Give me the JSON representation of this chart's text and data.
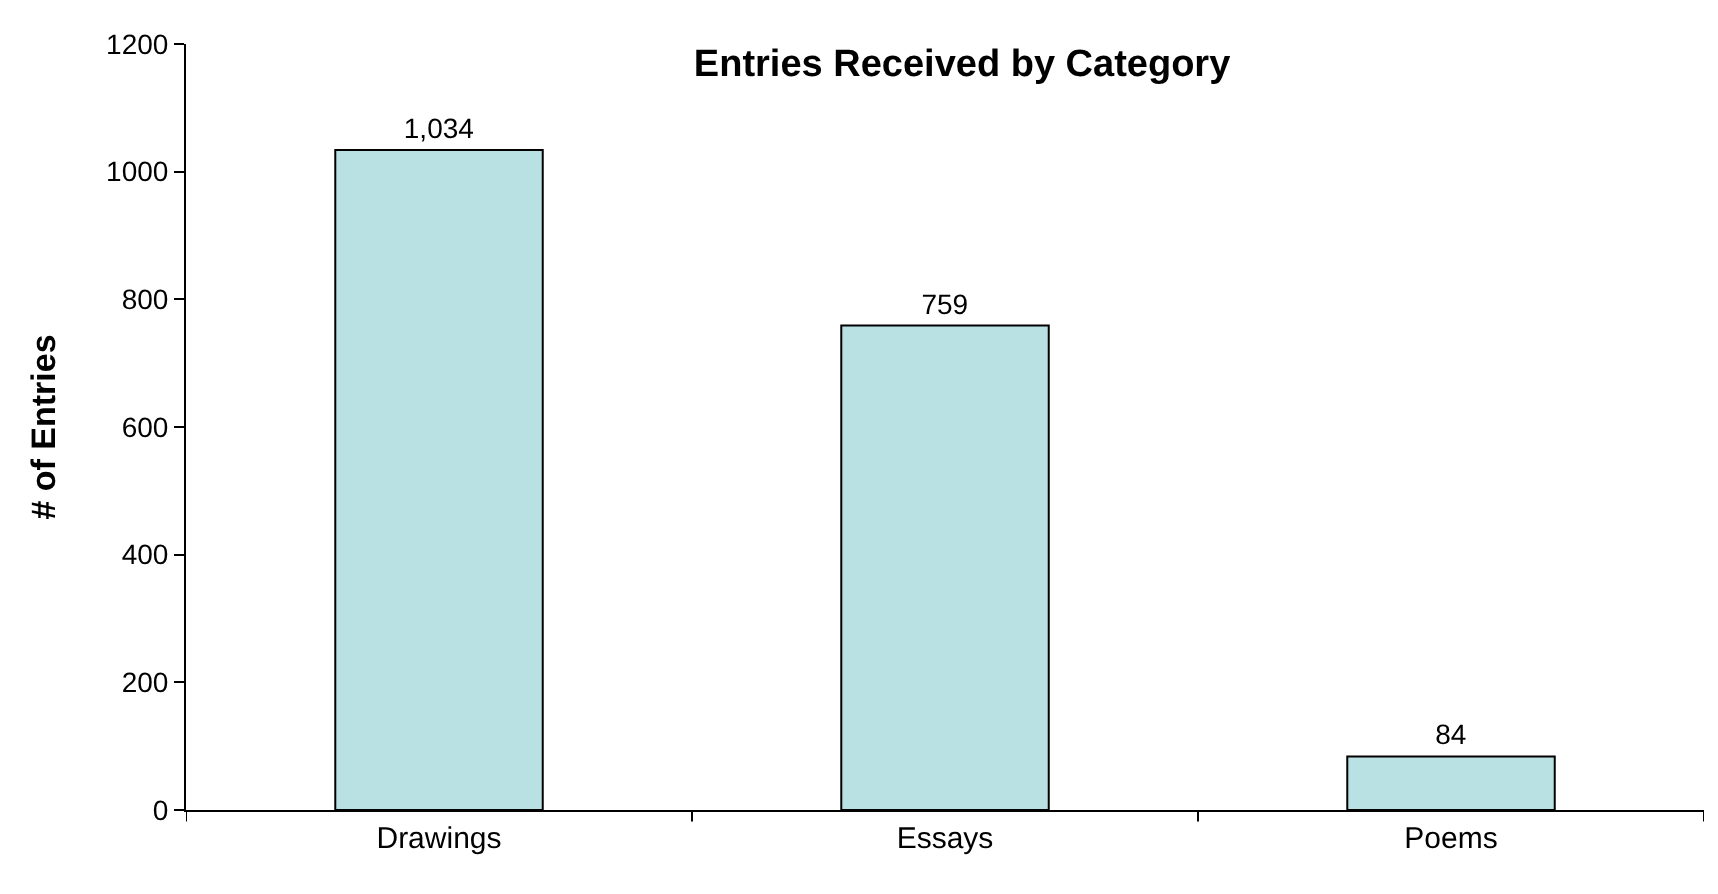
{
  "chart_data": {
    "type": "bar",
    "title": "Entries Received by Category",
    "ylabel": "# of Entries",
    "categories": [
      "Drawings",
      "Essays",
      "Poems"
    ],
    "values": [
      1034,
      759,
      84
    ],
    "value_labels": [
      "1,034",
      "759",
      "84"
    ],
    "color": "#b9e0e3",
    "ylim": [
      0,
      1200
    ],
    "yticks": [
      0,
      200,
      400,
      600,
      800,
      1000,
      1200
    ],
    "grid": false,
    "legend": false
  }
}
